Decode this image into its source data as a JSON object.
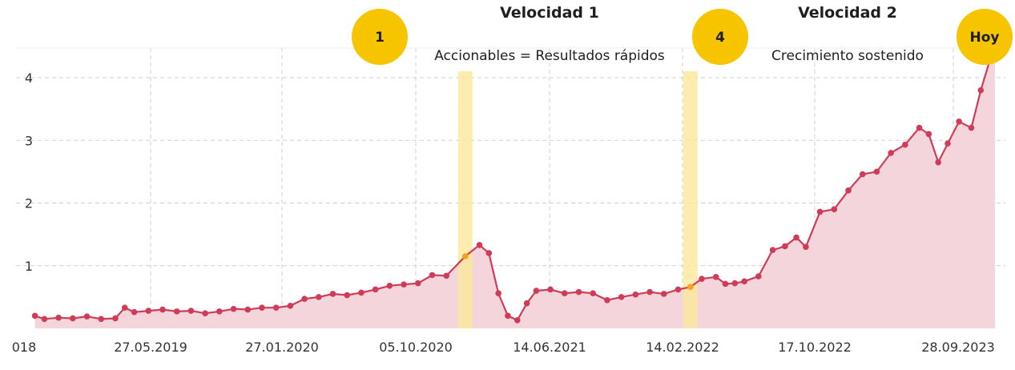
{
  "colors": {
    "line": "#cf3c57",
    "area": "#f5d5dc",
    "highlight_band": "#fbe79a",
    "badge": "#f7c500",
    "grid": "#cfcfcf",
    "marker_highlight": "#f4a21f"
  },
  "phases": [
    {
      "title": "Velocidad 1",
      "subtitle": "Accionables = Resultados rápidos"
    },
    {
      "title": "Velocidad 2",
      "subtitle": "Crecimiento sostenido"
    }
  ],
  "badges": [
    {
      "label": "1"
    },
    {
      "label": "4"
    },
    {
      "label": "Hoy"
    }
  ],
  "chart_data": {
    "type": "area",
    "title": "",
    "xlabel": "",
    "ylabel": "",
    "ylim": [
      0,
      4.4
    ],
    "y_ticks": [
      1,
      2,
      3,
      4
    ],
    "x_ticks": [
      "018",
      "27.05.2019",
      "27.01.2020",
      "05.10.2020",
      "14.06.2021",
      "14.02.2022",
      "17.10.2022",
      "28.09.2023"
    ],
    "grid": true,
    "highlight_bands": [
      {
        "label": "1",
        "x": 0.475
      },
      {
        "label": "4",
        "x": 0.713
      }
    ],
    "series": [
      {
        "values": [
          {
            "x": 0.02,
            "y": 0.2
          },
          {
            "x": 0.03,
            "y": 0.15
          },
          {
            "x": 0.045,
            "y": 0.17
          },
          {
            "x": 0.06,
            "y": 0.16
          },
          {
            "x": 0.075,
            "y": 0.19
          },
          {
            "x": 0.09,
            "y": 0.15
          },
          {
            "x": 0.105,
            "y": 0.16
          },
          {
            "x": 0.115,
            "y": 0.33
          },
          {
            "x": 0.125,
            "y": 0.26
          },
          {
            "x": 0.14,
            "y": 0.28
          },
          {
            "x": 0.155,
            "y": 0.3
          },
          {
            "x": 0.17,
            "y": 0.27
          },
          {
            "x": 0.185,
            "y": 0.28
          },
          {
            "x": 0.2,
            "y": 0.24
          },
          {
            "x": 0.215,
            "y": 0.27
          },
          {
            "x": 0.23,
            "y": 0.31
          },
          {
            "x": 0.245,
            "y": 0.3
          },
          {
            "x": 0.26,
            "y": 0.33
          },
          {
            "x": 0.275,
            "y": 0.33
          },
          {
            "x": 0.29,
            "y": 0.36
          },
          {
            "x": 0.305,
            "y": 0.47
          },
          {
            "x": 0.32,
            "y": 0.5
          },
          {
            "x": 0.335,
            "y": 0.55
          },
          {
            "x": 0.35,
            "y": 0.53
          },
          {
            "x": 0.365,
            "y": 0.57
          },
          {
            "x": 0.38,
            "y": 0.62
          },
          {
            "x": 0.395,
            "y": 0.68
          },
          {
            "x": 0.41,
            "y": 0.7
          },
          {
            "x": 0.425,
            "y": 0.72
          },
          {
            "x": 0.44,
            "y": 0.85
          },
          {
            "x": 0.455,
            "y": 0.84
          },
          {
            "x": 0.475,
            "y": 1.15
          },
          {
            "x": 0.49,
            "y": 1.33
          },
          {
            "x": 0.5,
            "y": 1.2
          },
          {
            "x": 0.51,
            "y": 0.56
          },
          {
            "x": 0.52,
            "y": 0.2
          },
          {
            "x": 0.53,
            "y": 0.13
          },
          {
            "x": 0.54,
            "y": 0.4
          },
          {
            "x": 0.55,
            "y": 0.6
          },
          {
            "x": 0.565,
            "y": 0.62
          },
          {
            "x": 0.58,
            "y": 0.56
          },
          {
            "x": 0.595,
            "y": 0.58
          },
          {
            "x": 0.61,
            "y": 0.56
          },
          {
            "x": 0.625,
            "y": 0.45
          },
          {
            "x": 0.64,
            "y": 0.5
          },
          {
            "x": 0.655,
            "y": 0.54
          },
          {
            "x": 0.67,
            "y": 0.58
          },
          {
            "x": 0.685,
            "y": 0.55
          },
          {
            "x": 0.7,
            "y": 0.62
          },
          {
            "x": 0.713,
            "y": 0.66
          },
          {
            "x": 0.725,
            "y": 0.79
          },
          {
            "x": 0.74,
            "y": 0.82
          },
          {
            "x": 0.75,
            "y": 0.71
          },
          {
            "x": 0.76,
            "y": 0.72
          },
          {
            "x": 0.77,
            "y": 0.75
          },
          {
            "x": 0.785,
            "y": 0.83
          },
          {
            "x": 0.8,
            "y": 1.25
          },
          {
            "x": 0.813,
            "y": 1.31
          },
          {
            "x": 0.825,
            "y": 1.45
          },
          {
            "x": 0.835,
            "y": 1.3
          },
          {
            "x": 0.85,
            "y": 1.86
          },
          {
            "x": 0.865,
            "y": 1.9
          },
          {
            "x": 0.88,
            "y": 2.2
          },
          {
            "x": 0.895,
            "y": 2.46
          },
          {
            "x": 0.91,
            "y": 2.5
          },
          {
            "x": 0.925,
            "y": 2.8
          },
          {
            "x": 0.94,
            "y": 2.93
          },
          {
            "x": 0.955,
            "y": 3.2
          },
          {
            "x": 0.965,
            "y": 3.1
          },
          {
            "x": 0.975,
            "y": 2.65
          },
          {
            "x": 0.985,
            "y": 2.95
          },
          {
            "x": 0.997,
            "y": 3.3
          },
          {
            "x": 1.01,
            "y": 3.2
          },
          {
            "x": 1.02,
            "y": 3.8
          },
          {
            "x": 1.03,
            "y": 4.3
          },
          {
            "x": 1.035,
            "y": 4.35
          }
        ]
      }
    ]
  }
}
